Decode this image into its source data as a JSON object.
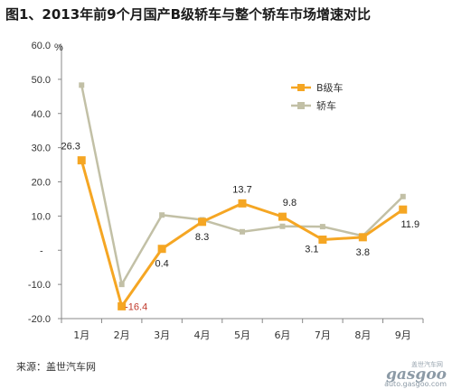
{
  "title": "图1、2013年前9个月国产B级轿车与整个轿车市场增速对比",
  "source": "来源：盖世汽车网",
  "watermark": {
    "top": "盖世汽车网",
    "logo": "gasgoo",
    "url": "auto.gasgoo.com"
  },
  "chart_data": {
    "type": "line",
    "categories": [
      "1月",
      "2月",
      "3月",
      "4月",
      "5月",
      "6月",
      "7月",
      "8月",
      "9月"
    ],
    "series": [
      {
        "name": "B级车",
        "values": [
          26.3,
          -16.4,
          0.4,
          8.3,
          13.7,
          9.8,
          3.1,
          3.8,
          11.9
        ],
        "labels": [
          "26.3",
          "-16.4",
          "0.4",
          "8.3",
          "13.7",
          "9.8",
          "3.1",
          "3.8",
          "11.9"
        ],
        "color": "#F5A623",
        "marker": "square"
      },
      {
        "name": "轿车",
        "values": [
          48.3,
          -10.0,
          10.3,
          8.9,
          5.4,
          7.0,
          6.9,
          4.2,
          15.7
        ],
        "color": "#C2C0A6",
        "marker": "square"
      }
    ],
    "ylim": [
      -20,
      60
    ],
    "yticks": [
      "60.0",
      "50.0",
      "40.0",
      "30.0",
      "20.0",
      "10.0",
      "-",
      "-10.0",
      "-20.0"
    ],
    "yunit": "%",
    "legend_position": "top-right",
    "grid": false,
    "label_colors": {
      "default": "#222222",
      "negative": "#C0392B"
    }
  }
}
